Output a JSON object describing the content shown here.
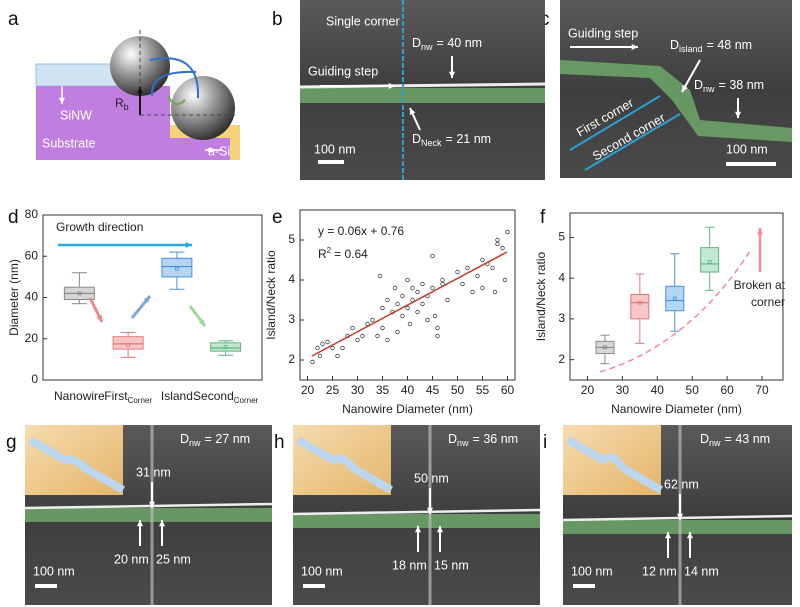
{
  "panel_labels": [
    "a",
    "b",
    "c",
    "d",
    "e",
    "f",
    "g",
    "h",
    "i"
  ],
  "schematic_a": {
    "sinw": "SiNW",
    "substrate": "Substrate",
    "asi": "a-Si",
    "radius": {
      "symbol": "R",
      "subscript": "b"
    }
  },
  "sem_b": {
    "corner": "Single corner",
    "d_nw": {
      "symbol": "D",
      "subscript": "nw",
      "rest": "= 40 nm"
    },
    "guiding": "Guiding step",
    "d_neck": {
      "symbol": "D",
      "subscript": "Neck",
      "rest": "= 21 nm"
    },
    "scale": "100 nm"
  },
  "sem_c": {
    "guiding": "Guiding step",
    "d_island": {
      "symbol": "D",
      "subscript": "island",
      "rest": "= 48 nm"
    },
    "d_nw": {
      "symbol": "D",
      "subscript": "nw",
      "rest": "= 38 nm"
    },
    "first": "First corner",
    "second": "Second corner",
    "scale": "100 nm"
  },
  "sem_row": [
    {
      "d_nw": {
        "symbol": "D",
        "subscript": "nw",
        "rest": "= 27 nm"
      },
      "top": "31 nm",
      "left": "20 nm",
      "right": "25 nm",
      "scale": "100 nm"
    },
    {
      "d_nw": {
        "symbol": "D",
        "subscript": "nw",
        "rest": "= 36 nm"
      },
      "top": "50 nm",
      "left": "18 nm",
      "right": "15 nm",
      "scale": "100 nm"
    },
    {
      "d_nw": {
        "symbol": "D",
        "subscript": "nw",
        "rest": "= 43 nm"
      },
      "top": "62 nm",
      "left": "12 nm",
      "right": "14 nm",
      "scale": "100 nm"
    }
  ],
  "chart_data": [
    {
      "type": "box",
      "ylabel": "Diameter (nm)",
      "annotation": "Growth direction",
      "categories": [
        "Nanowire",
        "First",
        "Island",
        "Second"
      ],
      "category_subscripts": [
        null,
        "Corner",
        null,
        "Corner"
      ],
      "boxes": [
        {
          "min": 37,
          "q1": 39,
          "median": 42,
          "q3": 45,
          "max": 52,
          "mean": 42,
          "color": "#8a8a8a",
          "fill": "#d6d6d6"
        },
        {
          "min": 11,
          "q1": 15,
          "median": 17.5,
          "q3": 21,
          "max": 23,
          "mean": 17,
          "color": "#e07a7a",
          "fill": "#f7c6c6"
        },
        {
          "min": 44,
          "q1": 50,
          "median": 55,
          "q3": 59,
          "max": 62,
          "mean": 54,
          "color": "#4a90d9",
          "fill": "#b3d6f6"
        },
        {
          "min": 12,
          "q1": 14,
          "median": 15.5,
          "q3": 18,
          "max": 19,
          "mean": 16,
          "color": "#5fb47e",
          "fill": "#c3e8d2"
        }
      ],
      "ylim": [
        0,
        80
      ],
      "yticks": [
        0,
        20,
        40,
        60,
        80
      ]
    },
    {
      "type": "scatter",
      "equation": "y = 0.06x + 0.76",
      "r2": {
        "base": "R",
        "sup": "2",
        "rest": "= 0.64"
      },
      "xlabel": "Nanowire Diameter (nm)",
      "ylabel": "Island/Neck ratio",
      "color": "#444",
      "fit_color": "#c0392b",
      "x": [
        21,
        22,
        22.5,
        23,
        24,
        25,
        26,
        27,
        28,
        29,
        30,
        31,
        32,
        33,
        34,
        34.5,
        35,
        35,
        36,
        36,
        37,
        37.5,
        38,
        38,
        39,
        39,
        40,
        40,
        40.5,
        41,
        41,
        42,
        42,
        43,
        43,
        44,
        44,
        45,
        45,
        45.5,
        46,
        46,
        47,
        47,
        48,
        50,
        51,
        52,
        53,
        54,
        55,
        55,
        56,
        57,
        57.5,
        58,
        58,
        59,
        60,
        59.5
      ],
      "values": [
        1.95,
        2.3,
        2.1,
        2.4,
        2.45,
        2.3,
        2.1,
        2.3,
        2.6,
        2.8,
        2.5,
        2.6,
        2.9,
        3.0,
        2.6,
        4.1,
        3.3,
        2.8,
        3.5,
        2.5,
        3.2,
        3.8,
        3.4,
        2.7,
        3.6,
        3.1,
        4.0,
        3.3,
        2.9,
        3.5,
        3.8,
        3.7,
        3.2,
        3.9,
        3.4,
        3.6,
        3.0,
        4.6,
        3.8,
        3.1,
        2.6,
        2.8,
        3.9,
        4.0,
        3.5,
        4.2,
        3.9,
        4.3,
        3.7,
        4.1,
        3.8,
        4.5,
        4.4,
        4.3,
        3.7,
        4.9,
        5.0,
        4.8,
        5.2,
        4.0
      ],
      "xlim": [
        18.5,
        61.5
      ],
      "xticks": [
        20,
        25,
        30,
        35,
        40,
        45,
        50,
        55,
        60
      ],
      "ylim": [
        1.5,
        5.75
      ],
      "yticks": [
        2,
        3,
        4,
        5
      ]
    },
    {
      "type": "box",
      "xlabel": "Nanowire Diameter (nm)",
      "ylabel": "Island/Neck ratio",
      "annotation": [
        "Broken at",
        "corner"
      ],
      "x": [
        25,
        35,
        45,
        55
      ],
      "boxes": [
        {
          "min": 1.9,
          "q1": 2.15,
          "median": 2.3,
          "q3": 2.45,
          "max": 2.6,
          "mean": 2.3,
          "color": "#8a8a8a",
          "fill": "#d6d6d6"
        },
        {
          "min": 2.4,
          "q1": 3.0,
          "median": 3.4,
          "q3": 3.6,
          "max": 4.1,
          "mean": 3.4,
          "color": "#e07a7a",
          "fill": "#f7c6c6"
        },
        {
          "min": 2.7,
          "q1": 3.2,
          "median": 3.45,
          "q3": 3.8,
          "max": 4.6,
          "mean": 3.5,
          "color": "#4a90d9",
          "fill": "#b3d6f6"
        },
        {
          "min": 3.7,
          "q1": 4.15,
          "median": 4.35,
          "q3": 4.75,
          "max": 5.25,
          "mean": 4.4,
          "color": "#5fb47e",
          "fill": "#c3e8d2"
        }
      ],
      "xlim": [
        15,
        76
      ],
      "xticks": [
        20,
        30,
        40,
        50,
        60,
        70
      ],
      "ylim": [
        1.5,
        5.6
      ],
      "yticks": [
        2,
        3,
        4,
        5
      ]
    }
  ]
}
